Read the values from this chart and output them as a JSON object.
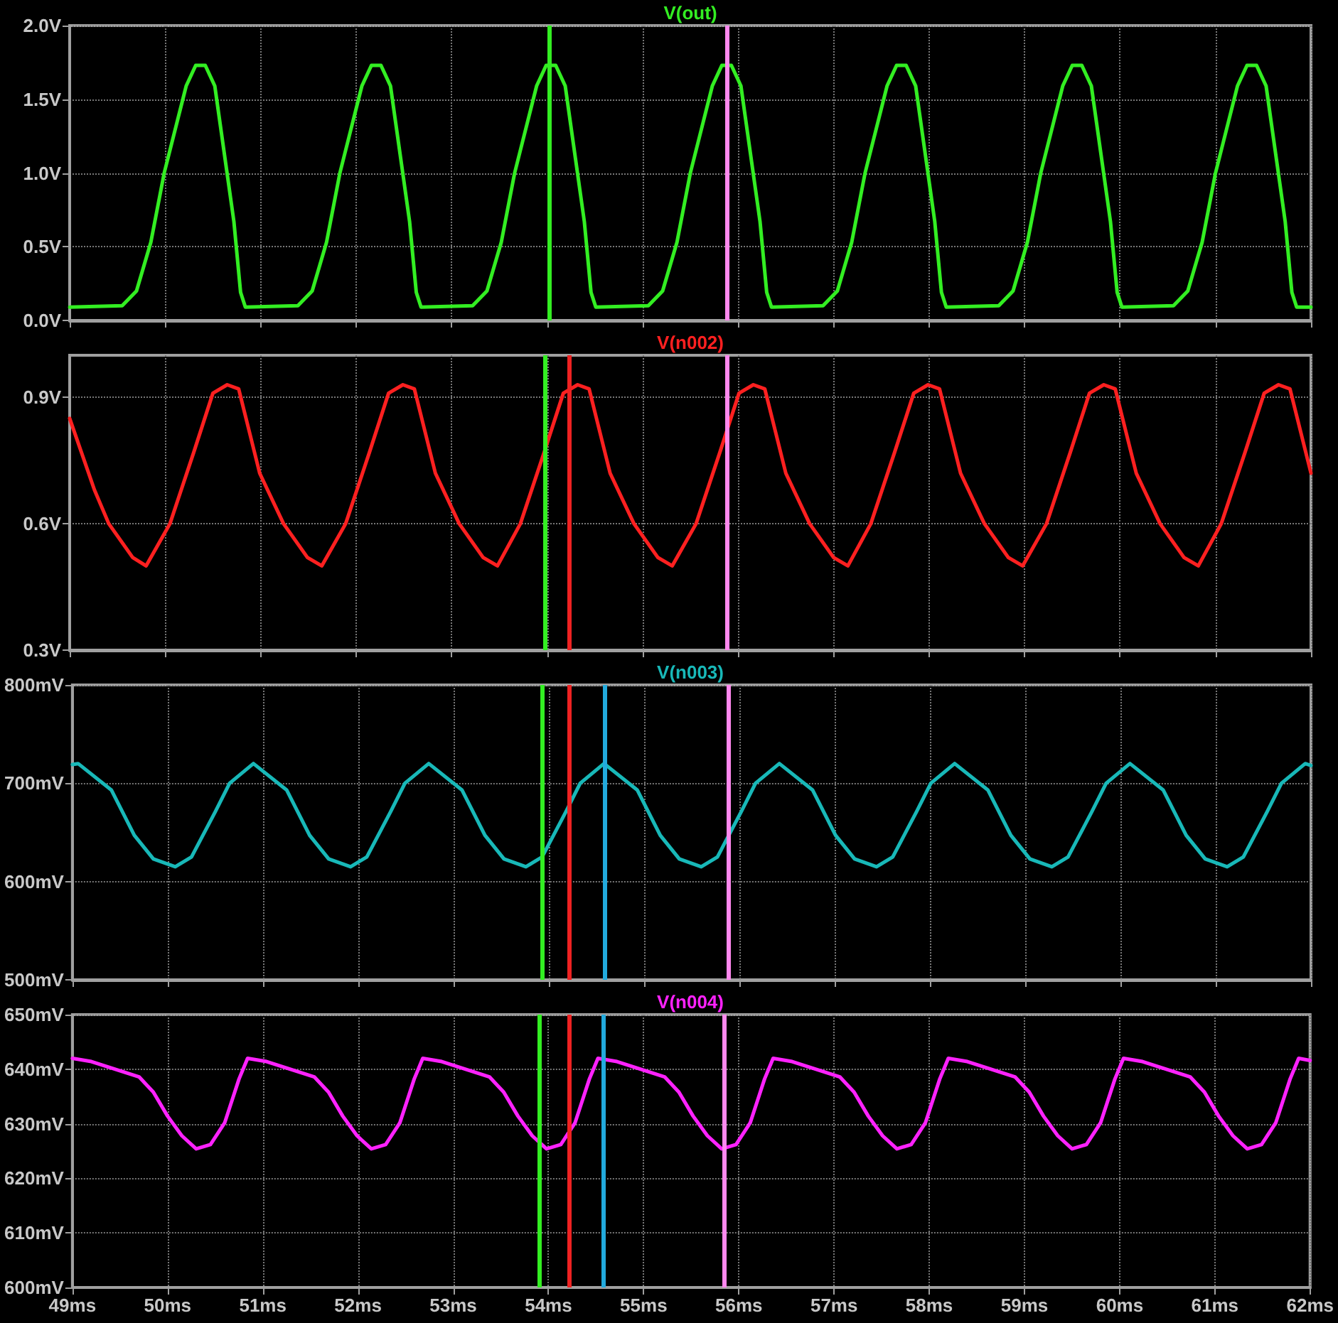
{
  "chart_data": [
    {
      "type": "line",
      "x": [
        49.0,
        49.55,
        49.7,
        49.85,
        49.99,
        50.22,
        50.32,
        50.42,
        50.52,
        50.72,
        50.79,
        50.84,
        51.39,
        51.54,
        51.69,
        51.83,
        52.06,
        52.16,
        52.26,
        52.36,
        52.56,
        52.63,
        52.68,
        53.22,
        53.37,
        53.52,
        53.66,
        53.89,
        53.99,
        54.09,
        54.19,
        54.39,
        54.46,
        54.51,
        55.06,
        55.21,
        55.36,
        55.5,
        55.73,
        55.83,
        55.93,
        56.03,
        56.23,
        56.3,
        56.35,
        56.89,
        57.04,
        57.19,
        57.33,
        57.56,
        57.66,
        57.76,
        57.86,
        58.06,
        58.13,
        58.18,
        58.73,
        58.88,
        59.03,
        59.17,
        59.4,
        59.5,
        59.6,
        59.7,
        59.9,
        59.97,
        60.02,
        60.56,
        60.71,
        60.86,
        61.0,
        61.23,
        61.33,
        61.43,
        61.53,
        61.73,
        61.8,
        61.85,
        62.0
      ],
      "series": [
        {
          "name": "V(out)",
          "color": "#33ee22",
          "values": [
            0.09,
            0.1,
            0.2,
            0.53,
            1.0,
            1.59,
            1.73,
            1.73,
            1.59,
            0.67,
            0.19,
            0.09,
            0.1,
            0.2,
            0.53,
            1.0,
            1.59,
            1.73,
            1.73,
            1.59,
            0.67,
            0.19,
            0.09,
            0.1,
            0.2,
            0.53,
            1.0,
            1.59,
            1.73,
            1.73,
            1.59,
            0.67,
            0.19,
            0.09,
            0.1,
            0.2,
            0.53,
            1.0,
            1.59,
            1.73,
            1.73,
            1.59,
            0.67,
            0.19,
            0.09,
            0.1,
            0.2,
            0.53,
            1.0,
            1.59,
            1.73,
            1.73,
            1.59,
            0.67,
            0.19,
            0.09,
            0.1,
            0.2,
            0.53,
            1.0,
            1.59,
            1.73,
            1.73,
            1.59,
            0.67,
            0.19,
            0.09,
            0.1,
            0.2,
            0.53,
            1.0,
            1.59,
            1.73,
            1.73,
            1.59,
            0.67,
            0.19,
            0.09,
            0.09
          ]
        }
      ],
      "xlim": [
        49,
        62
      ],
      "xticks": [
        49,
        50,
        51,
        52,
        53,
        54,
        55,
        56,
        57,
        58,
        59,
        60,
        61,
        62
      ],
      "ylim": [
        0,
        2
      ],
      "yticks": [
        {
          "value": 0,
          "label": "0.0V"
        },
        {
          "value": 0.5,
          "label": "0.5V"
        },
        {
          "value": 1,
          "label": "1.0V"
        },
        {
          "value": 1.5,
          "label": "1.5V"
        },
        {
          "value": 2,
          "label": "2.0V"
        }
      ],
      "tick_labels": "y",
      "grid": true,
      "legend": "top",
      "marker": "none",
      "line_style": "solid",
      "ref_lines": [
        {
          "axis": "x",
          "value": 54.02,
          "color": "#33ee22"
        },
        {
          "axis": "x",
          "value": 55.88,
          "color": "#ff88ee"
        }
      ]
    },
    {
      "type": "line",
      "x": [
        49.0,
        49.26,
        49.41,
        49.66,
        49.8,
        50.05,
        50.3,
        50.5,
        50.65,
        50.77,
        50.99,
        51.24,
        51.49,
        51.64,
        51.89,
        52.14,
        52.34,
        52.49,
        52.61,
        52.83,
        53.08,
        53.33,
        53.48,
        53.72,
        53.97,
        54.17,
        54.32,
        54.44,
        54.66,
        54.91,
        55.16,
        55.31,
        55.56,
        55.81,
        56.01,
        56.16,
        56.28,
        56.5,
        56.75,
        57.0,
        57.15,
        57.39,
        57.64,
        57.84,
        57.99,
        58.11,
        58.33,
        58.58,
        58.83,
        58.98,
        59.23,
        59.48,
        59.68,
        59.83,
        59.95,
        60.17,
        60.42,
        60.67,
        60.82,
        61.06,
        61.31,
        61.51,
        61.66,
        61.78,
        62.0
      ],
      "series": [
        {
          "name": "V(n002)",
          "color": "#ff2020",
          "values": [
            0.85,
            0.68,
            0.6,
            0.52,
            0.5,
            0.6,
            0.77,
            0.91,
            0.93,
            0.92,
            0.72,
            0.6,
            0.52,
            0.5,
            0.6,
            0.77,
            0.91,
            0.93,
            0.92,
            0.72,
            0.6,
            0.52,
            0.5,
            0.6,
            0.77,
            0.91,
            0.93,
            0.92,
            0.72,
            0.6,
            0.52,
            0.5,
            0.6,
            0.77,
            0.91,
            0.93,
            0.92,
            0.72,
            0.6,
            0.52,
            0.5,
            0.6,
            0.77,
            0.91,
            0.93,
            0.92,
            0.72,
            0.6,
            0.52,
            0.5,
            0.6,
            0.77,
            0.91,
            0.93,
            0.92,
            0.72,
            0.6,
            0.52,
            0.5,
            0.6,
            0.77,
            0.91,
            0.93,
            0.92,
            0.72
          ]
        }
      ],
      "xlim": [
        49,
        62
      ],
      "xticks": [
        49,
        50,
        51,
        52,
        53,
        54,
        55,
        56,
        57,
        58,
        59,
        60,
        61,
        62
      ],
      "ylim": [
        0.3,
        1.0
      ],
      "yticks": [
        {
          "value": 0.3,
          "label": "0.3V"
        },
        {
          "value": 0.6,
          "label": "0.6V"
        },
        {
          "value": 0.9,
          "label": "0.9V"
        }
      ],
      "tick_labels": "y",
      "grid": true,
      "legend": "top",
      "marker": "none",
      "line_style": "solid",
      "ref_lines": [
        {
          "axis": "x",
          "value": 53.97,
          "color": "#33ee22"
        },
        {
          "axis": "x",
          "value": 54.23,
          "color": "#ee2222"
        },
        {
          "axis": "x",
          "value": 55.88,
          "color": "#ff88ee"
        }
      ]
    },
    {
      "type": "line",
      "x": [
        49.0,
        49.06,
        49.41,
        49.65,
        49.85,
        50.08,
        50.25,
        50.5,
        50.65,
        50.9,
        51.25,
        51.49,
        51.69,
        51.92,
        52.09,
        52.34,
        52.49,
        52.74,
        53.09,
        53.33,
        53.53,
        53.76,
        53.93,
        54.18,
        54.33,
        54.58,
        54.93,
        55.17,
        55.37,
        55.6,
        55.77,
        56.02,
        56.17,
        56.42,
        56.77,
        57.01,
        57.21,
        57.44,
        57.61,
        57.86,
        58.01,
        58.26,
        58.61,
        58.85,
        59.05,
        59.28,
        59.45,
        59.7,
        59.85,
        60.1,
        60.45,
        60.69,
        60.89,
        61.12,
        61.29,
        61.54,
        61.69,
        61.94,
        62.0
      ],
      "series": [
        {
          "name": "V(n003)",
          "color": "#18b8b8",
          "values": [
            719,
            720,
            693,
            647,
            623,
            615,
            625,
            671,
            700,
            720,
            693,
            647,
            623,
            615,
            625,
            671,
            700,
            720,
            693,
            647,
            623,
            615,
            625,
            671,
            700,
            720,
            693,
            647,
            623,
            615,
            625,
            671,
            700,
            720,
            693,
            647,
            623,
            615,
            625,
            671,
            700,
            720,
            693,
            647,
            623,
            615,
            625,
            671,
            700,
            720,
            693,
            647,
            623,
            615,
            625,
            671,
            700,
            720,
            718
          ]
        }
      ],
      "xlim": [
        49,
        62
      ],
      "xticks": [
        49,
        50,
        51,
        52,
        53,
        54,
        55,
        56,
        57,
        58,
        59,
        60,
        61,
        62
      ],
      "ylim": [
        500,
        800
      ],
      "yticks": [
        {
          "value": 500,
          "label": "500mV"
        },
        {
          "value": 600,
          "label": "600mV"
        },
        {
          "value": 700,
          "label": "700mV"
        },
        {
          "value": 800,
          "label": "800mV"
        }
      ],
      "tick_labels": "y",
      "grid": true,
      "legend": "top",
      "marker": "none",
      "line_style": "solid",
      "ref_lines": [
        {
          "axis": "x",
          "value": 53.93,
          "color": "#33ee22"
        },
        {
          "axis": "x",
          "value": 54.22,
          "color": "#ee2222"
        },
        {
          "axis": "x",
          "value": 54.58,
          "color": "#22aadd"
        },
        {
          "axis": "x",
          "value": 55.88,
          "color": "#ff88ee"
        }
      ]
    },
    {
      "type": "line",
      "x": [
        49.0,
        49.2,
        49.7,
        49.85,
        50.0,
        50.15,
        50.3,
        50.45,
        50.6,
        50.75,
        50.84,
        51.04,
        51.54,
        51.69,
        51.84,
        51.99,
        52.14,
        52.29,
        52.44,
        52.59,
        52.68,
        52.88,
        53.38,
        53.53,
        53.68,
        53.83,
        53.98,
        54.13,
        54.28,
        54.43,
        54.52,
        54.72,
        55.22,
        55.37,
        55.52,
        55.67,
        55.82,
        55.97,
        56.12,
        56.27,
        56.36,
        56.56,
        57.06,
        57.21,
        57.36,
        57.51,
        57.66,
        57.81,
        57.96,
        58.11,
        58.2,
        58.4,
        58.9,
        59.05,
        59.2,
        59.35,
        59.5,
        59.65,
        59.8,
        59.95,
        60.04,
        60.24,
        60.74,
        60.89,
        61.04,
        61.19,
        61.34,
        61.49,
        61.64,
        61.79,
        61.88,
        62.0
      ],
      "series": [
        {
          "name": "V(n004)",
          "color": "#ff22ff",
          "values": [
            642,
            641.4,
            638.6,
            635.8,
            631.4,
            627.8,
            625.4,
            626.2,
            630.2,
            638.2,
            642,
            641.4,
            638.6,
            635.8,
            631.4,
            627.8,
            625.4,
            626.2,
            630.2,
            638.2,
            642,
            641.4,
            638.6,
            635.8,
            631.4,
            627.8,
            625.4,
            626.2,
            630.2,
            638.2,
            642,
            641.4,
            638.6,
            635.8,
            631.4,
            627.8,
            625.4,
            626.2,
            630.2,
            638.2,
            642,
            641.4,
            638.6,
            635.8,
            631.4,
            627.8,
            625.4,
            626.2,
            630.2,
            638.2,
            642,
            641.4,
            638.6,
            635.8,
            631.4,
            627.8,
            625.4,
            626.2,
            630.2,
            638.2,
            642,
            641.4,
            638.6,
            635.8,
            631.4,
            627.8,
            625.4,
            626.2,
            630.2,
            638.2,
            642,
            641.6
          ]
        }
      ],
      "xlim": [
        49,
        62
      ],
      "xticks": [
        {
          "value": 49,
          "label": "49ms"
        },
        {
          "value": 50,
          "label": "50ms"
        },
        {
          "value": 51,
          "label": "51ms"
        },
        {
          "value": 52,
          "label": "52ms"
        },
        {
          "value": 53,
          "label": "53ms"
        },
        {
          "value": 54,
          "label": "54ms"
        },
        {
          "value": 55,
          "label": "55ms"
        },
        {
          "value": 56,
          "label": "56ms"
        },
        {
          "value": 57,
          "label": "57ms"
        },
        {
          "value": 58,
          "label": "58ms"
        },
        {
          "value": 59,
          "label": "59ms"
        },
        {
          "value": 60,
          "label": "60ms"
        },
        {
          "value": 61,
          "label": "61ms"
        },
        {
          "value": 62,
          "label": "62ms"
        }
      ],
      "ylim": [
        600,
        650
      ],
      "yticks": [
        {
          "value": 600,
          "label": "600mV"
        },
        {
          "value": 610,
          "label": "610mV"
        },
        {
          "value": 620,
          "label": "620mV"
        },
        {
          "value": 630,
          "label": "630mV"
        },
        {
          "value": 640,
          "label": "640mV"
        },
        {
          "value": 650,
          "label": "650mV"
        }
      ],
      "grid": true,
      "legend": "top",
      "marker": "none",
      "line_style": "solid",
      "ref_lines": [
        {
          "axis": "x",
          "value": 53.9,
          "color": "#33ee22"
        },
        {
          "axis": "x",
          "value": 54.22,
          "color": "#ee2222"
        },
        {
          "axis": "x",
          "value": 54.58,
          "color": "#22aadd"
        },
        {
          "axis": "x",
          "value": 55.85,
          "color": "#ff88ee"
        }
      ]
    }
  ]
}
